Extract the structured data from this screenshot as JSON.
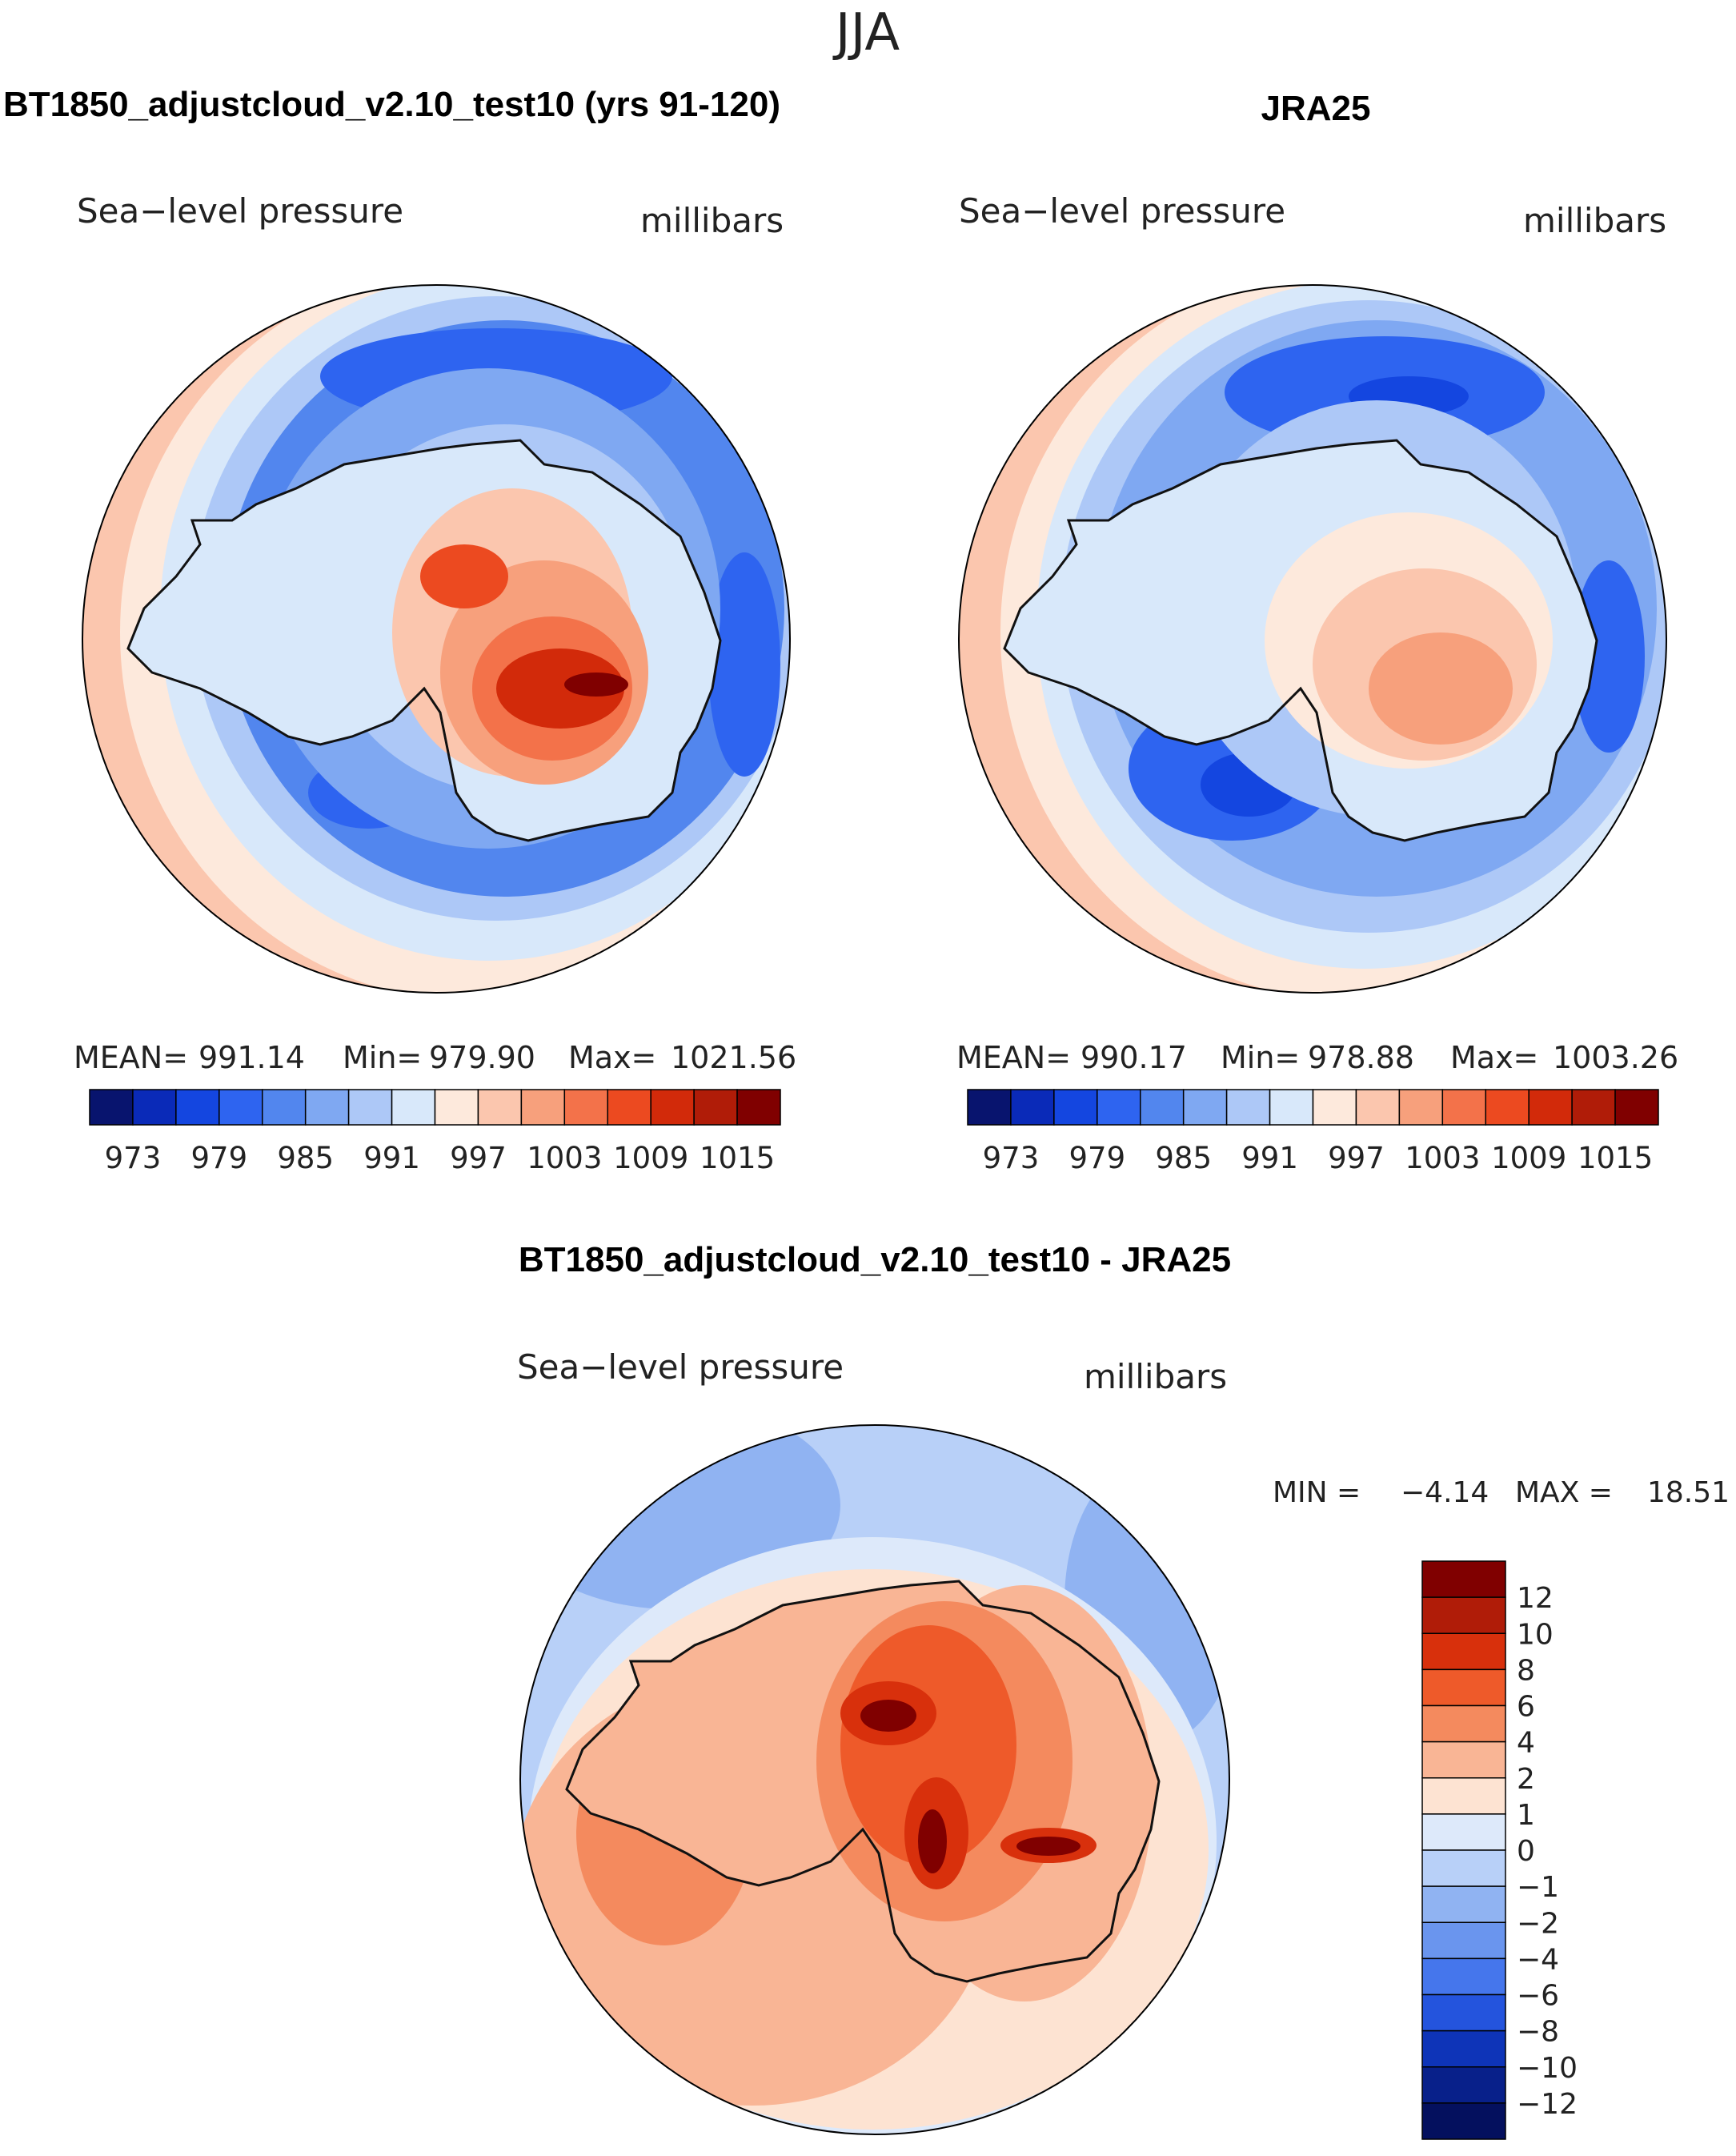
{
  "page_title": "JJA",
  "panels": [
    {
      "title": "BT1850_adjustcloud_v2.10_test10 (yrs 91-120)",
      "variable": "Sea−level pressure",
      "units": "millibars",
      "stats": {
        "mean_label": "MEAN=",
        "mean": "991.14",
        "min_label": "Min=",
        "min": "979.90",
        "max_label": "Max=",
        "max": "1021.56"
      }
    },
    {
      "title": "JRA25",
      "variable": "Sea−level pressure",
      "units": "millibars",
      "stats": {
        "mean_label": "MEAN=",
        "mean": "990.17",
        "min_label": "Min=",
        "min": "978.88",
        "max_label": "Max=",
        "max": "1003.26"
      }
    }
  ],
  "abs_colorbar": {
    "colors": [
      "#08146e",
      "#0a2ab8",
      "#1446e0",
      "#2e64f0",
      "#5286ee",
      "#7fa8f2",
      "#adc8f7",
      "#d8e8fa",
      "#fde9dc",
      "#fbc6ae",
      "#f7a07c",
      "#f3724a",
      "#ec4a20",
      "#d22a0a",
      "#b01c08",
      "#800000"
    ],
    "labels": [
      "973",
      "979",
      "985",
      "991",
      "997",
      "1003",
      "1009",
      "1015"
    ]
  },
  "diff_panel": {
    "title": "BT1850_adjustcloud_v2.10_test10 - JRA25",
    "variable": "Sea−level pressure",
    "units": "millibars",
    "min_label": "MIN =",
    "min": "−4.14",
    "max_label": "MAX =",
    "max": "18.51"
  },
  "diff_colorbar": {
    "colors_top_to_bottom": [
      "#800000",
      "#b01c08",
      "#d8300c",
      "#ee5a2a",
      "#f48a5e",
      "#f9b595",
      "#fde3d2",
      "#dde9fa",
      "#b8d0f8",
      "#90b3f2",
      "#6a95ee",
      "#4576ec",
      "#2454dd",
      "#0e34b8",
      "#08208a",
      "#04105e"
    ],
    "labels_top_to_bottom": [
      "12",
      "10",
      "8",
      "6",
      "4",
      "2",
      "1",
      "0",
      "−1",
      "−2",
      "−4",
      "−6",
      "−8",
      "−10",
      "−12"
    ]
  },
  "map_palette": {
    "abs": {
      "ocean_far": "#fbc6ae",
      "ocean_mid": "#d8e8fa",
      "ocean_low": "#5286ee",
      "ocean_deep": "#2e64f0",
      "ice_high": "#ec4a20",
      "ice_peak": "#800000"
    },
    "diff": {
      "ocean_pos": "#f9b595",
      "ocean_pos2": "#f48a5e",
      "ocean_neg": "#b8d0f8",
      "ocean_neg2": "#90b3f2",
      "ice_pos": "#ee5a2a",
      "ice_peak": "#800000"
    }
  }
}
